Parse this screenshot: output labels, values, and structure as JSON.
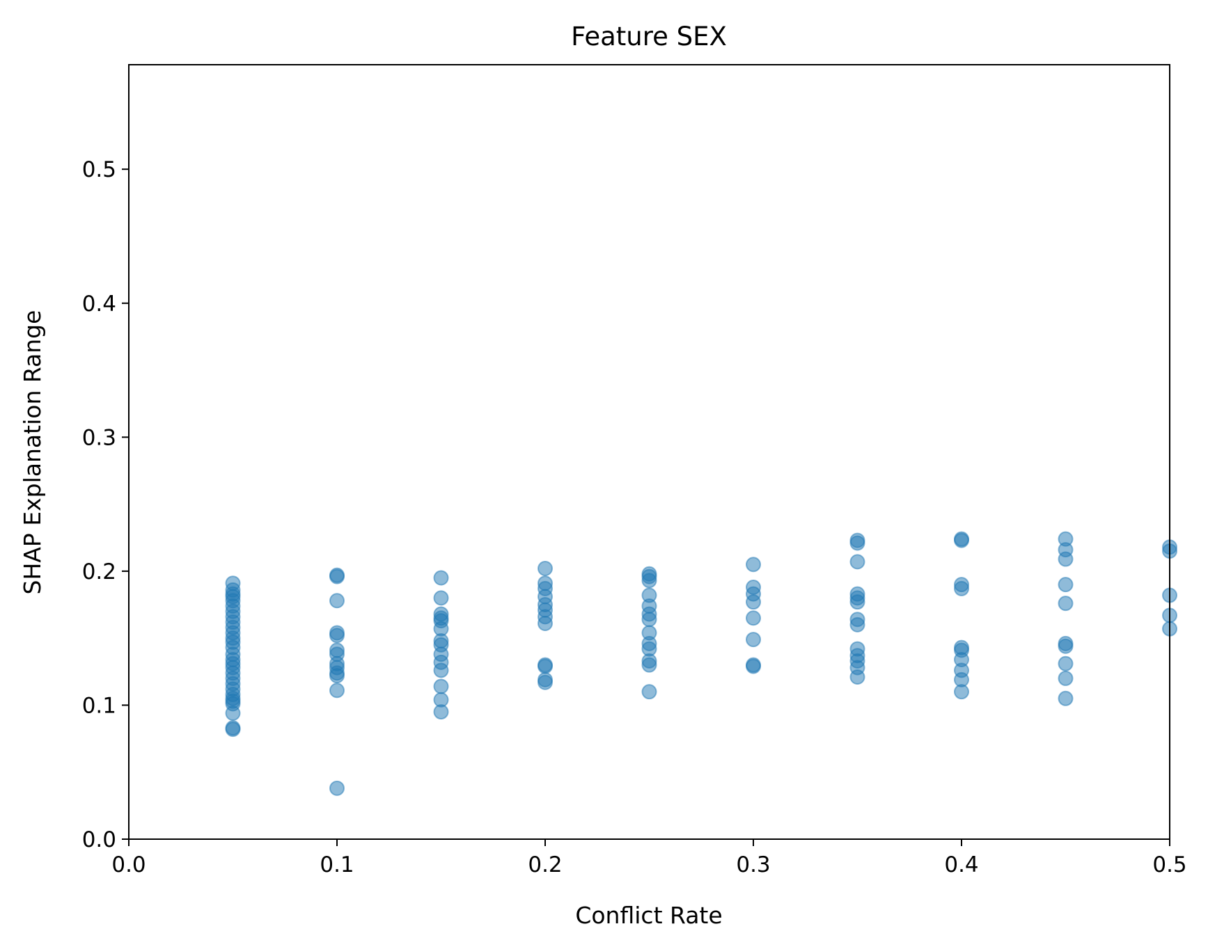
{
  "chart_data": {
    "type": "scatter",
    "title": "Feature SEX",
    "xlabel": "Conflict Rate",
    "ylabel": "SHAP Explanation Range",
    "xlim": [
      0.0,
      0.5
    ],
    "ylim": [
      0.0,
      0.578
    ],
    "xticks": [
      "0.0",
      "0.1",
      "0.2",
      "0.3",
      "0.4",
      "0.5"
    ],
    "yticks": [
      "0.0",
      "0.1",
      "0.2",
      "0.3",
      "0.4",
      "0.5"
    ],
    "grid": false,
    "marker_color": "#1f77b4",
    "marker_alpha": 0.5,
    "series": [
      {
        "points": [
          [
            0.05,
            0.191
          ],
          [
            0.05,
            0.186
          ],
          [
            0.05,
            0.183
          ],
          [
            0.05,
            0.181
          ],
          [
            0.05,
            0.178
          ],
          [
            0.05,
            0.174
          ],
          [
            0.05,
            0.17
          ],
          [
            0.05,
            0.166
          ],
          [
            0.05,
            0.162
          ],
          [
            0.05,
            0.158
          ],
          [
            0.05,
            0.154
          ],
          [
            0.05,
            0.15
          ],
          [
            0.05,
            0.147
          ],
          [
            0.05,
            0.143
          ],
          [
            0.05,
            0.138
          ],
          [
            0.05,
            0.134
          ],
          [
            0.05,
            0.131
          ],
          [
            0.05,
            0.128
          ],
          [
            0.05,
            0.124
          ],
          [
            0.05,
            0.12
          ],
          [
            0.05,
            0.116
          ],
          [
            0.05,
            0.112
          ],
          [
            0.05,
            0.108
          ],
          [
            0.05,
            0.105
          ],
          [
            0.05,
            0.103
          ],
          [
            0.05,
            0.101
          ],
          [
            0.05,
            0.094
          ],
          [
            0.05,
            0.083
          ],
          [
            0.05,
            0.082
          ],
          [
            0.1,
            0.197
          ],
          [
            0.1,
            0.196
          ],
          [
            0.1,
            0.178
          ],
          [
            0.1,
            0.154
          ],
          [
            0.1,
            0.152
          ],
          [
            0.1,
            0.141
          ],
          [
            0.1,
            0.138
          ],
          [
            0.1,
            0.131
          ],
          [
            0.1,
            0.128
          ],
          [
            0.1,
            0.124
          ],
          [
            0.1,
            0.122
          ],
          [
            0.1,
            0.111
          ],
          [
            0.1,
            0.038
          ],
          [
            0.15,
            0.195
          ],
          [
            0.15,
            0.18
          ],
          [
            0.15,
            0.168
          ],
          [
            0.15,
            0.165
          ],
          [
            0.15,
            0.163
          ],
          [
            0.15,
            0.157
          ],
          [
            0.15,
            0.148
          ],
          [
            0.15,
            0.145
          ],
          [
            0.15,
            0.138
          ],
          [
            0.15,
            0.132
          ],
          [
            0.15,
            0.126
          ],
          [
            0.15,
            0.114
          ],
          [
            0.15,
            0.104
          ],
          [
            0.15,
            0.095
          ],
          [
            0.2,
            0.202
          ],
          [
            0.2,
            0.191
          ],
          [
            0.2,
            0.187
          ],
          [
            0.2,
            0.181
          ],
          [
            0.2,
            0.175
          ],
          [
            0.2,
            0.171
          ],
          [
            0.2,
            0.166
          ],
          [
            0.2,
            0.161
          ],
          [
            0.2,
            0.13
          ],
          [
            0.2,
            0.129
          ],
          [
            0.2,
            0.119
          ],
          [
            0.2,
            0.117
          ],
          [
            0.25,
            0.198
          ],
          [
            0.25,
            0.196
          ],
          [
            0.25,
            0.193
          ],
          [
            0.25,
            0.182
          ],
          [
            0.25,
            0.174
          ],
          [
            0.25,
            0.168
          ],
          [
            0.25,
            0.164
          ],
          [
            0.25,
            0.154
          ],
          [
            0.25,
            0.146
          ],
          [
            0.25,
            0.142
          ],
          [
            0.25,
            0.133
          ],
          [
            0.25,
            0.13
          ],
          [
            0.25,
            0.11
          ],
          [
            0.3,
            0.205
          ],
          [
            0.3,
            0.188
          ],
          [
            0.3,
            0.183
          ],
          [
            0.3,
            0.177
          ],
          [
            0.3,
            0.165
          ],
          [
            0.3,
            0.149
          ],
          [
            0.3,
            0.13
          ],
          [
            0.3,
            0.129
          ],
          [
            0.35,
            0.223
          ],
          [
            0.35,
            0.221
          ],
          [
            0.35,
            0.207
          ],
          [
            0.35,
            0.183
          ],
          [
            0.35,
            0.18
          ],
          [
            0.35,
            0.177
          ],
          [
            0.35,
            0.164
          ],
          [
            0.35,
            0.16
          ],
          [
            0.35,
            0.142
          ],
          [
            0.35,
            0.137
          ],
          [
            0.35,
            0.133
          ],
          [
            0.35,
            0.128
          ],
          [
            0.35,
            0.121
          ],
          [
            0.4,
            0.224
          ],
          [
            0.4,
            0.223
          ],
          [
            0.4,
            0.19
          ],
          [
            0.4,
            0.187
          ],
          [
            0.4,
            0.143
          ],
          [
            0.4,
            0.141
          ],
          [
            0.4,
            0.134
          ],
          [
            0.4,
            0.126
          ],
          [
            0.4,
            0.119
          ],
          [
            0.4,
            0.11
          ],
          [
            0.45,
            0.224
          ],
          [
            0.45,
            0.216
          ],
          [
            0.45,
            0.209
          ],
          [
            0.45,
            0.19
          ],
          [
            0.45,
            0.176
          ],
          [
            0.45,
            0.146
          ],
          [
            0.45,
            0.144
          ],
          [
            0.45,
            0.131
          ],
          [
            0.45,
            0.12
          ],
          [
            0.45,
            0.105
          ],
          [
            0.5,
            0.218
          ],
          [
            0.5,
            0.215
          ],
          [
            0.5,
            0.182
          ],
          [
            0.5,
            0.167
          ],
          [
            0.5,
            0.157
          ]
        ]
      }
    ]
  }
}
